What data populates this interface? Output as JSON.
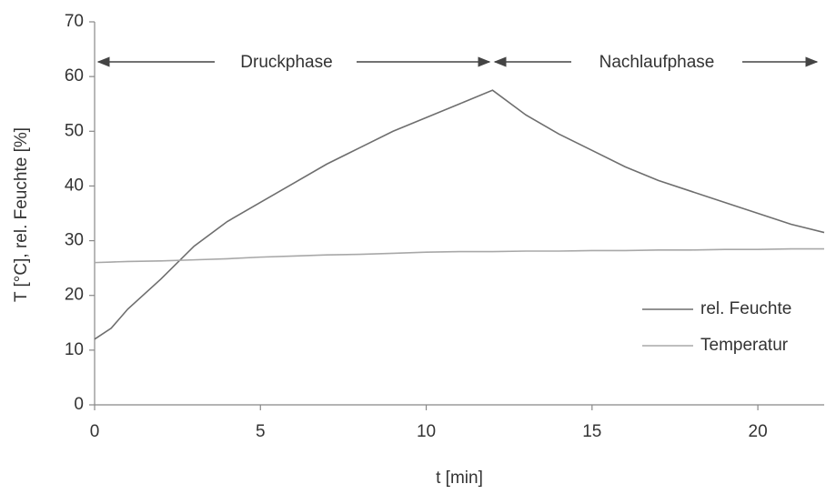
{
  "chart_data": {
    "type": "line",
    "y_label": "T [°C], rel. Feuchte [%]",
    "x_label": "t [min]",
    "annotations": [
      "Druckphase",
      "Nachlaufphase"
    ],
    "x": [
      0,
      0.5,
      1,
      2,
      3,
      4,
      5,
      6,
      7,
      8,
      9,
      10,
      11,
      12,
      13,
      14,
      15,
      16,
      17,
      18,
      19,
      20,
      21,
      22
    ],
    "series": [
      {
        "name": "rel. Feuchte",
        "color": "#6e6e6e",
        "values": [
          12,
          14,
          17.5,
          23,
          29,
          33.5,
          37,
          40.5,
          44,
          47,
          50,
          52.5,
          55,
          57.5,
          53,
          49.5,
          46.5,
          43.5,
          41,
          39,
          37,
          35,
          33,
          31.5
        ]
      },
      {
        "name": "Temperatur",
        "color": "#a8a8a8",
        "values": [
          26,
          26.1,
          26.2,
          26.3,
          26.5,
          26.7,
          27,
          27.2,
          27.4,
          27.5,
          27.7,
          27.9,
          28,
          28,
          28.1,
          28.1,
          28.2,
          28.2,
          28.3,
          28.3,
          28.4,
          28.4,
          28.5,
          28.5
        ]
      }
    ],
    "xlim": [
      0,
      22
    ],
    "xticks": [
      0,
      5,
      10,
      15,
      20
    ],
    "ylim": [
      0,
      70
    ],
    "yticks": [
      0,
      10,
      20,
      30,
      40,
      50,
      60,
      70
    ],
    "grid": false,
    "legend": "lower right"
  }
}
